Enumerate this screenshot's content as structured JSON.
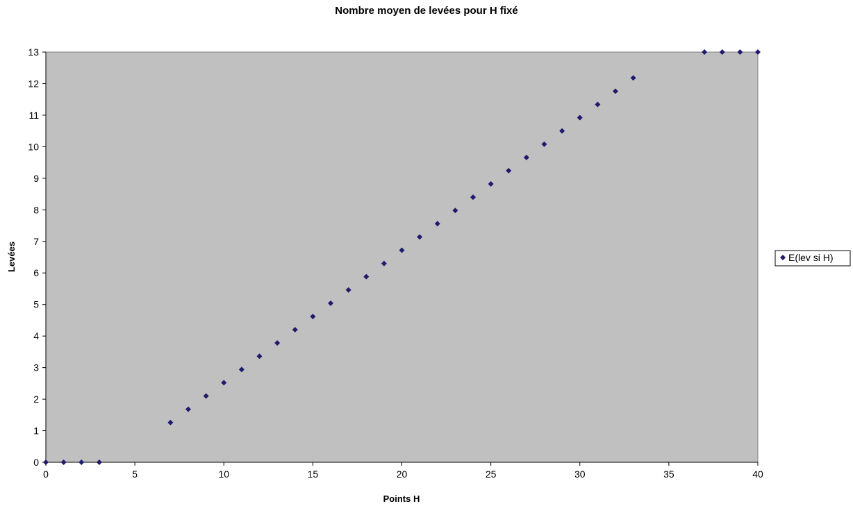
{
  "chart_data": {
    "type": "scatter",
    "title": "Nombre moyen de levées pour H fixé",
    "xlabel": "Points H",
    "ylabel": "Levées",
    "xlim": [
      0,
      40
    ],
    "ylim": [
      0,
      13
    ],
    "xticks": [
      0,
      5,
      10,
      15,
      20,
      25,
      30,
      35,
      40
    ],
    "yticks": [
      0,
      1,
      2,
      3,
      4,
      5,
      6,
      7,
      8,
      9,
      10,
      11,
      12,
      13
    ],
    "grid": false,
    "legend_position": "right",
    "plot_background": "#c0c0c0",
    "series": [
      {
        "name": "E(lev si H)",
        "color": "#1f1a6b",
        "marker": "diamond",
        "points": [
          [
            0,
            0
          ],
          [
            1,
            0
          ],
          [
            2,
            0
          ],
          [
            3,
            0
          ],
          [
            7,
            1.26
          ],
          [
            8,
            1.68
          ],
          [
            9,
            2.1
          ],
          [
            10,
            2.52
          ],
          [
            11,
            2.94
          ],
          [
            12,
            3.36
          ],
          [
            13,
            3.78
          ],
          [
            14,
            4.2
          ],
          [
            15,
            4.62
          ],
          [
            16,
            5.04
          ],
          [
            17,
            5.46
          ],
          [
            18,
            5.88
          ],
          [
            19,
            6.3
          ],
          [
            20,
            6.72
          ],
          [
            21,
            7.14
          ],
          [
            22,
            7.56
          ],
          [
            23,
            7.98
          ],
          [
            24,
            8.4
          ],
          [
            25,
            8.82
          ],
          [
            26,
            9.24
          ],
          [
            27,
            9.66
          ],
          [
            28,
            10.08
          ],
          [
            29,
            10.5
          ],
          [
            30,
            10.92
          ],
          [
            31,
            11.34
          ],
          [
            32,
            11.76
          ],
          [
            33,
            12.18
          ],
          [
            37,
            13
          ],
          [
            38,
            13
          ],
          [
            39,
            13
          ],
          [
            40,
            13
          ]
        ]
      }
    ]
  }
}
